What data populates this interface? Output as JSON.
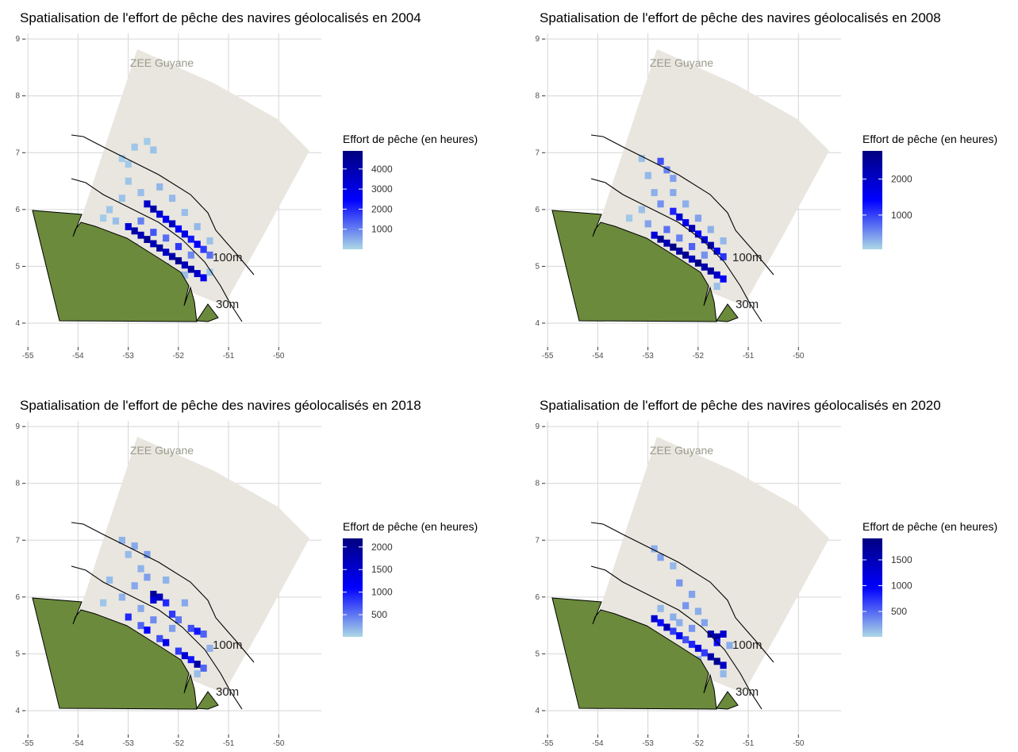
{
  "panels": [
    {
      "title": "Spatialisation de l'effort de pêche des navires géolocalisés en 2004",
      "xlim": [
        -55.05,
        -49.15
      ],
      "ylim": [
        3.58,
        9.1
      ],
      "xticks": [
        -55,
        -54,
        -53,
        -52,
        -51,
        -50
      ],
      "yticks": [
        4,
        5,
        6,
        7,
        8,
        9
      ],
      "zone_label": "ZEE Guyane",
      "isobath_labels": [
        "100m",
        "30m"
      ],
      "legend": {
        "title": "Effort de pêche (en heures)",
        "range": [
          0,
          4900
        ],
        "ticks": [
          1000,
          2000,
          3000,
          4000
        ],
        "colors": [
          "#add8e6",
          "#0000ff",
          "#000080"
        ]
      },
      "cells": [
        [
          -53.0,
          5.7,
          3200
        ],
        [
          -52.875,
          5.625,
          4200
        ],
        [
          -52.75,
          5.55,
          3800
        ],
        [
          -52.625,
          5.475,
          4500
        ],
        [
          -52.5,
          5.4,
          3900
        ],
        [
          -52.375,
          5.325,
          4300
        ],
        [
          -52.25,
          5.25,
          3600
        ],
        [
          -52.125,
          5.175,
          4100
        ],
        [
          -52.0,
          5.1,
          4600
        ],
        [
          -51.875,
          5.025,
          3800
        ],
        [
          -51.75,
          4.95,
          4200
        ],
        [
          -51.625,
          4.875,
          3500
        ],
        [
          -51.5,
          4.8,
          2800
        ],
        [
          -52.625,
          6.1,
          3500
        ],
        [
          -52.5,
          6.01,
          4100
        ],
        [
          -52.375,
          5.92,
          3300
        ],
        [
          -52.25,
          5.83,
          2800
        ],
        [
          -52.125,
          5.75,
          3600
        ],
        [
          -52.0,
          5.66,
          2500
        ],
        [
          -51.875,
          5.57,
          3000
        ],
        [
          -51.75,
          5.48,
          2200
        ],
        [
          -51.625,
          5.39,
          2600
        ],
        [
          -51.5,
          5.3,
          1800
        ],
        [
          -51.375,
          5.2,
          1200
        ],
        [
          -52.5,
          5.6,
          1500
        ],
        [
          -52.25,
          5.5,
          1200
        ],
        [
          -52.0,
          5.35,
          1800
        ],
        [
          -51.75,
          5.2,
          900
        ],
        [
          -52.75,
          5.8,
          1000
        ],
        [
          -53.25,
          5.8,
          300
        ],
        [
          -53.5,
          5.85,
          150
        ],
        [
          -53.375,
          6.0,
          200
        ],
        [
          -53.125,
          6.2,
          250
        ],
        [
          -53.0,
          6.5,
          200
        ],
        [
          -53.0,
          6.8,
          150
        ],
        [
          -52.875,
          7.1,
          200
        ],
        [
          -52.625,
          7.2,
          150
        ],
        [
          -52.5,
          7.05,
          250
        ],
        [
          -52.75,
          6.3,
          300
        ],
        [
          -52.375,
          6.4,
          400
        ],
        [
          -52.125,
          6.2,
          350
        ],
        [
          -51.875,
          5.95,
          300
        ],
        [
          -51.625,
          5.7,
          350
        ],
        [
          -51.375,
          5.45,
          250
        ],
        [
          -52.875,
          5.35,
          200
        ],
        [
          -52.5,
          5.1,
          250
        ],
        [
          -52.25,
          5.0,
          200
        ],
        [
          -51.875,
          4.85,
          300
        ],
        [
          -51.375,
          4.9,
          200
        ],
        [
          -53.125,
          6.9,
          120
        ]
      ]
    },
    {
      "title": "Spatialisation de l'effort de pêche des navires géolocalisés en 2008",
      "xlim": [
        -55.05,
        -49.15
      ],
      "ylim": [
        3.58,
        9.1
      ],
      "xticks": [
        -55,
        -54,
        -53,
        -52,
        -51,
        -50
      ],
      "yticks": [
        4,
        5,
        6,
        7,
        8,
        9
      ],
      "zone_label": "ZEE Guyane",
      "isobath_labels": [
        "100m",
        "30m"
      ],
      "legend": {
        "title": "Effort de pêche (en heures)",
        "range": [
          50,
          2780
        ],
        "ticks": [
          1000,
          2000
        ],
        "colors": [
          "#add8e6",
          "#0000ff",
          "#000080"
        ]
      },
      "cells": [
        [
          -52.875,
          5.55,
          1800
        ],
        [
          -52.75,
          5.48,
          2600
        ],
        [
          -52.625,
          5.41,
          2200
        ],
        [
          -52.5,
          5.34,
          2700
        ],
        [
          -52.375,
          5.27,
          2400
        ],
        [
          -52.25,
          5.2,
          2600
        ],
        [
          -52.125,
          5.13,
          2100
        ],
        [
          -52.0,
          5.06,
          2700
        ],
        [
          -51.875,
          4.99,
          2300
        ],
        [
          -51.75,
          4.92,
          2500
        ],
        [
          -51.625,
          4.85,
          2000
        ],
        [
          -51.5,
          4.78,
          1500
        ],
        [
          -52.5,
          5.97,
          1200
        ],
        [
          -52.375,
          5.87,
          1900
        ],
        [
          -52.25,
          5.77,
          1600
        ],
        [
          -52.125,
          5.67,
          2200
        ],
        [
          -52.0,
          5.57,
          1400
        ],
        [
          -51.875,
          5.47,
          1800
        ],
        [
          -51.75,
          5.37,
          2300
        ],
        [
          -51.625,
          5.27,
          1700
        ],
        [
          -51.5,
          5.17,
          1100
        ],
        [
          -52.75,
          6.85,
          900
        ],
        [
          -52.625,
          6.7,
          600
        ],
        [
          -52.5,
          6.55,
          400
        ],
        [
          -53.125,
          6.9,
          200
        ],
        [
          -53.0,
          6.6,
          250
        ],
        [
          -52.875,
          6.3,
          300
        ],
        [
          -53.125,
          6.0,
          200
        ],
        [
          -53.375,
          5.85,
          150
        ],
        [
          -53.0,
          5.75,
          400
        ],
        [
          -52.75,
          6.1,
          500
        ],
        [
          -52.5,
          6.3,
          350
        ],
        [
          -52.25,
          6.1,
          300
        ],
        [
          -52.0,
          5.85,
          400
        ],
        [
          -51.75,
          5.65,
          300
        ],
        [
          -51.5,
          5.45,
          250
        ],
        [
          -52.625,
          5.65,
          700
        ],
        [
          -52.375,
          5.5,
          600
        ],
        [
          -52.125,
          5.35,
          800
        ],
        [
          -51.875,
          5.2,
          500
        ],
        [
          -52.75,
          5.25,
          200
        ],
        [
          -52.375,
          5.05,
          250
        ],
        [
          -51.625,
          4.65,
          200
        ]
      ]
    },
    {
      "title": "Spatialisation de l'effort de pêche des navires géolocalisés en 2018",
      "xlim": [
        -55.05,
        -49.15
      ],
      "ylim": [
        3.58,
        9.1
      ],
      "xticks": [
        -55,
        -54,
        -53,
        -52,
        -51,
        -50
      ],
      "yticks": [
        4,
        5,
        6,
        7,
        8,
        9
      ],
      "zone_label": "ZEE Guyane",
      "isobath_labels": [
        "100m",
        "30m"
      ],
      "legend": {
        "title": "Effort de pêche (en heures)",
        "range": [
          10,
          2190
        ],
        "ticks": [
          500,
          1000,
          1500,
          2000
        ],
        "colors": [
          "#add8e6",
          "#0000ff",
          "#000080"
        ]
      },
      "cells": [
        [
          -53.0,
          5.65,
          900
        ],
        [
          -52.75,
          5.5,
          600
        ],
        [
          -52.625,
          5.42,
          1100
        ],
        [
          -52.375,
          5.27,
          700
        ],
        [
          -52.25,
          5.2,
          1300
        ],
        [
          -52.0,
          5.05,
          800
        ],
        [
          -51.875,
          4.97,
          1500
        ],
        [
          -51.75,
          4.9,
          1000
        ],
        [
          -51.625,
          4.82,
          1900
        ],
        [
          -51.5,
          4.75,
          600
        ],
        [
          -52.5,
          6.05,
          2000
        ],
        [
          -52.375,
          6.0,
          1700
        ],
        [
          -52.5,
          5.95,
          1400
        ],
        [
          -52.25,
          5.9,
          900
        ],
        [
          -52.125,
          5.7,
          800
        ],
        [
          -52.0,
          5.6,
          500
        ],
        [
          -51.75,
          5.45,
          700
        ],
        [
          -51.625,
          5.4,
          1000
        ],
        [
          -51.5,
          5.35,
          600
        ],
        [
          -53.125,
          7.0,
          200
        ],
        [
          -52.875,
          6.9,
          250
        ],
        [
          -53.0,
          6.75,
          150
        ],
        [
          -52.625,
          6.75,
          300
        ],
        [
          -52.75,
          6.5,
          200
        ],
        [
          -53.375,
          6.3,
          150
        ],
        [
          -53.125,
          6.0,
          200
        ],
        [
          -53.5,
          5.9,
          100
        ],
        [
          -52.875,
          6.2,
          250
        ],
        [
          -52.625,
          6.35,
          300
        ],
        [
          -52.25,
          6.3,
          200
        ],
        [
          -51.875,
          5.9,
          250
        ],
        [
          -52.125,
          5.45,
          300
        ],
        [
          -52.5,
          5.6,
          400
        ],
        [
          -52.75,
          5.8,
          250
        ],
        [
          -51.375,
          5.1,
          200
        ],
        [
          -52.25,
          4.95,
          200
        ],
        [
          -51.625,
          4.65,
          150
        ]
      ]
    },
    {
      "title": "Spatialisation de l'effort de pêche des navires géolocalisés en 2020",
      "xlim": [
        -55.05,
        -49.15
      ],
      "ylim": [
        3.58,
        9.1
      ],
      "xticks": [
        -55,
        -54,
        -53,
        -52,
        -51,
        -50
      ],
      "yticks": [
        4,
        5,
        6,
        7,
        8,
        9
      ],
      "zone_label": "ZEE Guyane",
      "isobath_labels": [
        "100m",
        "30m"
      ],
      "legend": {
        "title": "Effort de pêche (en heures)",
        "range": [
          10,
          1915
        ],
        "ticks": [
          500,
          1000,
          1500
        ],
        "colors": [
          "#add8e6",
          "#0000ff",
          "#000080"
        ]
      },
      "cells": [
        [
          -52.875,
          5.62,
          1300
        ],
        [
          -52.75,
          5.55,
          900
        ],
        [
          -52.625,
          5.47,
          1500
        ],
        [
          -52.5,
          5.4,
          700
        ],
        [
          -52.375,
          5.32,
          1100
        ],
        [
          -52.25,
          5.25,
          600
        ],
        [
          -52.125,
          5.17,
          800
        ],
        [
          -52.0,
          5.1,
          1200
        ],
        [
          -51.875,
          5.02,
          700
        ],
        [
          -51.75,
          4.95,
          1600
        ],
        [
          -51.625,
          4.87,
          1800
        ],
        [
          -51.5,
          4.8,
          1400
        ],
        [
          -51.75,
          5.35,
          1500
        ],
        [
          -51.625,
          5.3,
          1700
        ],
        [
          -51.5,
          5.35,
          1300
        ],
        [
          -51.625,
          5.2,
          900
        ],
        [
          -52.875,
          6.85,
          200
        ],
        [
          -52.75,
          6.7,
          250
        ],
        [
          -52.5,
          6.55,
          150
        ],
        [
          -52.375,
          6.25,
          300
        ],
        [
          -52.125,
          6.05,
          250
        ],
        [
          -52.25,
          5.85,
          300
        ],
        [
          -52.0,
          5.75,
          200
        ],
        [
          -51.875,
          5.55,
          250
        ],
        [
          -52.5,
          5.65,
          200
        ],
        [
          -52.75,
          5.8,
          150
        ],
        [
          -52.125,
          5.45,
          300
        ],
        [
          -52.375,
          5.55,
          200
        ],
        [
          -51.375,
          5.15,
          200
        ],
        [
          -51.5,
          4.65,
          150
        ],
        [
          -52.0,
          4.9,
          200
        ]
      ]
    }
  ]
}
